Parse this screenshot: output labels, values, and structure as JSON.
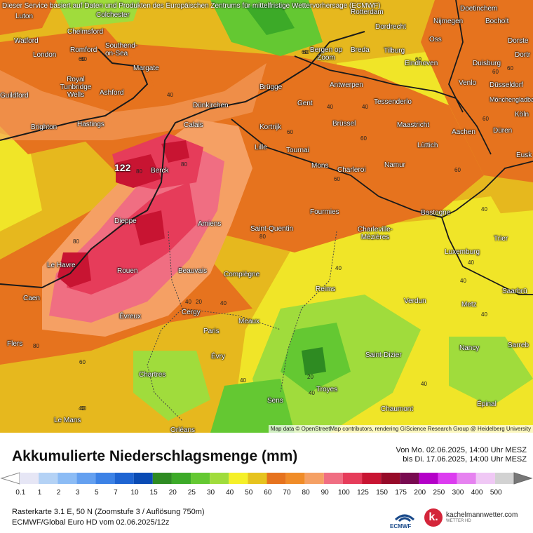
{
  "map": {
    "disclaimer": "Dieser Service basiert auf Daten und Produkten des Europäischen Zentrums für mittelfristige Wettervorhersage (ECMWF)",
    "attribution": "Map data © OpenStreetMap contributors, rendering GIScience Research Group @ Heidelberg University",
    "max_label": "122",
    "cities": [
      "Luton",
      "Colchester",
      "Watford",
      "Chelmsford",
      "Southend-on-Sea",
      "Romford",
      "London",
      "Margate",
      "Royal Tunbridge Wells",
      "Ashford",
      "Guildford",
      "Brighton",
      "Hastings",
      "Calais",
      "Dünkirchen",
      "Berck",
      "Dieppe",
      "Amiens",
      "Le Havre",
      "Rouen",
      "Beauvais",
      "Caen",
      "Évreux",
      "Cergy",
      "Paris",
      "Évry",
      "Meaux",
      "Compiègne",
      "Saint-Quentin",
      "Lille",
      "Tournai",
      "Kortrijk",
      "Brügge",
      "Gent",
      "Antwerpen",
      "Bergen op Zoom",
      "Breda",
      "Tilburg",
      "Dordrecht",
      "Rotterdam",
      "Nijmegen",
      "Oss",
      "Eindhoven",
      "Venlo",
      "Duisburg",
      "Düsseldorf",
      "Mönchengladbach",
      "Köln",
      "Aachen",
      "Düren",
      "Tessenderlo",
      "Brüssel",
      "Maastricht",
      "Lüttich",
      "Mons",
      "Charleroi",
      "Namur",
      "Fourmies",
      "Charleville-Mézières",
      "Bastogne",
      "Luxemburg",
      "Trier",
      "Saarbrü",
      "Metz",
      "Verdun",
      "Reims",
      "Saint-Dizier",
      "Nancy",
      "Troyes",
      "Chaumont",
      "Épinal",
      "Chartres",
      "Sens",
      "Flers",
      "Le Mans",
      "Orléans",
      "Sarreb",
      "Bocholt",
      "Dorste",
      "Dortr",
      "Eusk",
      "Doetinchem"
    ],
    "contour_labels": [
      "60",
      "40",
      "40",
      "40",
      "40",
      "60",
      "60",
      "60",
      "60",
      "40",
      "60",
      "60",
      "40",
      "60",
      "60",
      "40",
      "40",
      "80",
      "80",
      "80",
      "80",
      "60",
      "40",
      "40",
      "40",
      "40",
      "20",
      "20",
      "40",
      "40",
      "60",
      "40",
      "60",
      "80",
      "60"
    ]
  },
  "panel": {
    "title": "Akkumulierte Niederschlagsmenge (mm)",
    "period_from": "Von Mo. 02.06.2025, 14:00 Uhr MESZ",
    "period_to": "bis Di. 17.06.2025, 14:00 Uhr MESZ",
    "meta_line1": "Rasterkarte 3.1 E, 50 N  (Zoomstufe 3 / Auflösung 750m)",
    "meta_line2": "ECMWF/Global Euro HD vom  02.06.2025/12z",
    "ecmwf_label": "ECMWF",
    "brand_name": "kachelmannwetter.com",
    "brand_sub": "WETTER HD",
    "brand_mark": "k."
  },
  "legend": {
    "labels": [
      "0.1",
      "1",
      "2",
      "3",
      "5",
      "7",
      "10",
      "15",
      "20",
      "25",
      "30",
      "40",
      "50",
      "60",
      "70",
      "80",
      "90",
      "100",
      "125",
      "150",
      "175",
      "200",
      "250",
      "300",
      "400",
      "500"
    ],
    "colors": [
      "#e6e6f5",
      "#b4d2f5",
      "#8cbcf5",
      "#64a0f0",
      "#3c82e6",
      "#1e64d2",
      "#0a4bb4",
      "#2e8b22",
      "#3caa28",
      "#64c832",
      "#a0dc3c",
      "#f5f028",
      "#e6c31e",
      "#e6731e",
      "#f08c28",
      "#f5a064",
      "#f06e82",
      "#e63c5a",
      "#c81432",
      "#960a28",
      "#780a50",
      "#b400c8",
      "#dc3cf0",
      "#e682f0",
      "#f0c8f5",
      "#d2d2d2"
    ]
  }
}
